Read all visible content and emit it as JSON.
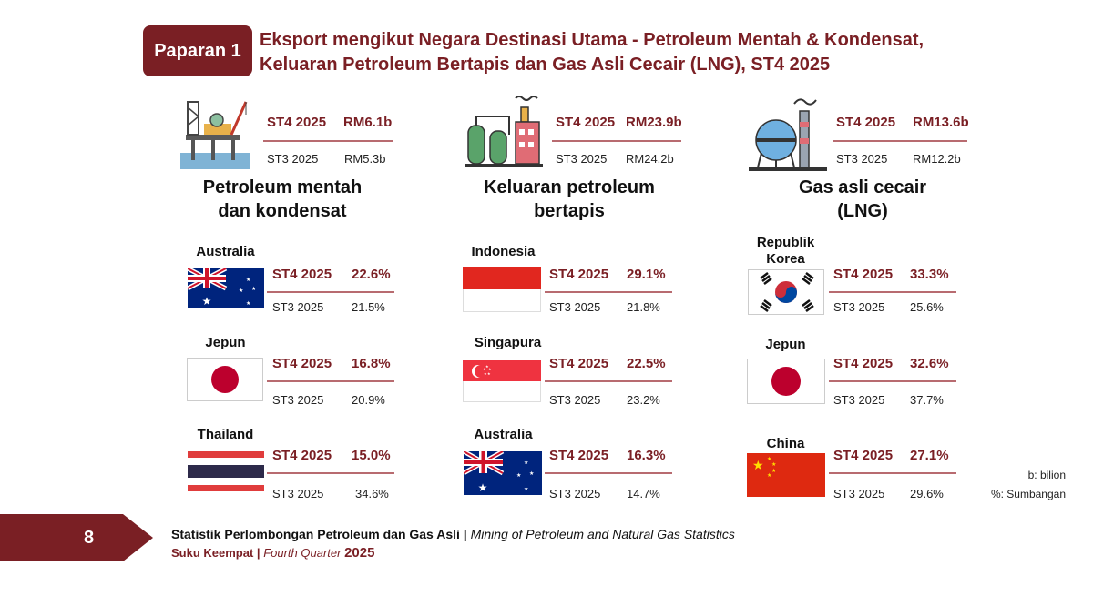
{
  "header": {
    "badge": "Paparan 1",
    "title_line1": "Eksport mengikut Negara Destinasi Utama - Petroleum Mentah & Kondensat,",
    "title_line2": "Keluaran Petroleum Bertapis dan Gas Asli Cecair (LNG), ST4 2025"
  },
  "categories": [
    {
      "icon": "oil-rig-icon",
      "title_line1": "Petroleum mentah",
      "title_line2": "dan kondensat",
      "current_period": "ST4 2025",
      "current_value": "RM6.1b",
      "previous_period": "ST3 2025",
      "previous_value": "RM5.3b",
      "countries": [
        {
          "name": "Australia",
          "flag": "australia-flag",
          "current_period": "ST4 2025",
          "current": "22.6%",
          "previous_period": "ST3 2025",
          "previous": "21.5%"
        },
        {
          "name": "Jepun",
          "flag": "japan-flag",
          "current_period": "ST4 2025",
          "current": "16.8%",
          "previous_period": "ST3 2025",
          "previous": "20.9%"
        },
        {
          "name": "Thailand",
          "flag": "thailand-flag",
          "current_period": "ST4 2025",
          "current": "15.0%",
          "previous_period": "ST3 2025",
          "previous": "34.6%"
        }
      ]
    },
    {
      "icon": "refinery-icon",
      "title_line1": "Keluaran petroleum",
      "title_line2": "bertapis",
      "current_period": "ST4 2025",
      "current_value": "RM23.9b",
      "previous_period": "ST3 2025",
      "previous_value": "RM24.2b",
      "countries": [
        {
          "name": "Indonesia",
          "flag": "indonesia-flag",
          "current_period": "ST4 2025",
          "current": "29.1%",
          "previous_period": "ST3 2025",
          "previous": "21.8%"
        },
        {
          "name": "Singapura",
          "flag": "singapore-flag",
          "current_period": "ST4 2025",
          "current": "22.5%",
          "previous_period": "ST3 2025",
          "previous": "23.2%"
        },
        {
          "name": "Australia",
          "flag": "australia-flag",
          "current_period": "ST4 2025",
          "current": "16.3%",
          "previous_period": "ST3 2025",
          "previous": "14.7%"
        }
      ]
    },
    {
      "icon": "lng-plant-icon",
      "title_line1": "Gas asli cecair",
      "title_line2": "(LNG)",
      "current_period": "ST4 2025",
      "current_value": "RM13.6b",
      "previous_period": "ST3 2025",
      "previous_value": "RM12.2b",
      "countries": [
        {
          "name_line1": "Republik",
          "name_line2": "Korea",
          "flag": "south-korea-flag",
          "current_period": "ST4 2025",
          "current": "33.3%",
          "previous_period": "ST3 2025",
          "previous": "25.6%"
        },
        {
          "name": "Jepun",
          "flag": "japan-flag",
          "current_period": "ST4 2025",
          "current": "32.6%",
          "previous_period": "ST3 2025",
          "previous": "37.7%"
        },
        {
          "name": "China",
          "flag": "china-flag",
          "current_period": "ST4 2025",
          "current": "27.1%",
          "previous_period": "ST3 2025",
          "previous": "29.6%"
        }
      ]
    }
  ],
  "legend": {
    "b": "b: bilion",
    "pct": "%: Sumbangan"
  },
  "footer": {
    "page_number": "8",
    "line1_bold": "Statistik Perlombongan Petroleum dan Gas Asli |",
    "line1_italic": "Mining of Petroleum and Natural Gas Statistics",
    "line2_bold": "Suku Keempat |",
    "line2_italic": "Fourth Quarter",
    "line2_year": "2025"
  },
  "colors": {
    "accent": "#7a1f24",
    "divider": "#b86b70"
  }
}
